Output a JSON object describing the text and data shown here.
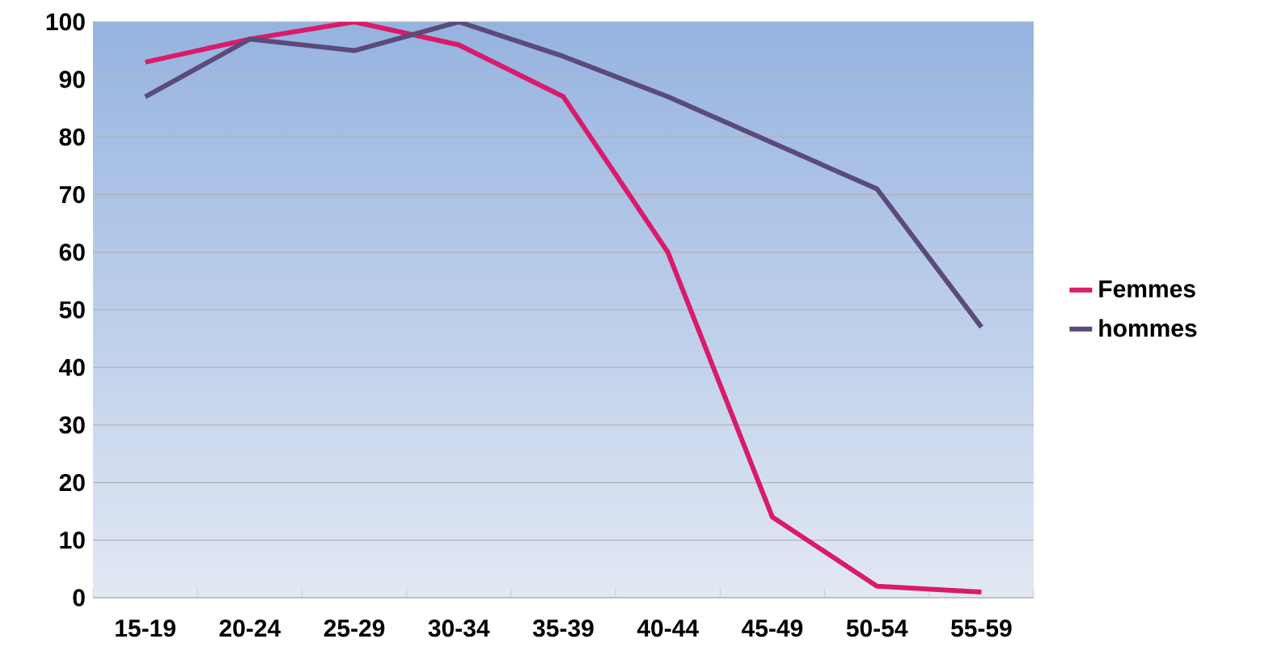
{
  "chart_data": {
    "type": "line",
    "categories": [
      "15-19",
      "20-24",
      "25-29",
      "30-34",
      "35-39",
      "40-44",
      "45-49",
      "50-54",
      "55-59"
    ],
    "series": [
      {
        "name": "Femmes",
        "color": "#d81b6a",
        "values": [
          93,
          97,
          100,
          96,
          87,
          60,
          14,
          2,
          1
        ]
      },
      {
        "name": "hommes",
        "color": "#5b4a7a",
        "values": [
          87,
          97,
          95,
          100,
          94,
          87,
          79,
          71,
          47
        ]
      }
    ],
    "ylim": [
      0,
      100
    ],
    "yticks": [
      0,
      10,
      20,
      30,
      40,
      50,
      60,
      70,
      80,
      90,
      100
    ],
    "grid": "y",
    "legend": "right",
    "marker": "none",
    "line_style": "solid"
  }
}
